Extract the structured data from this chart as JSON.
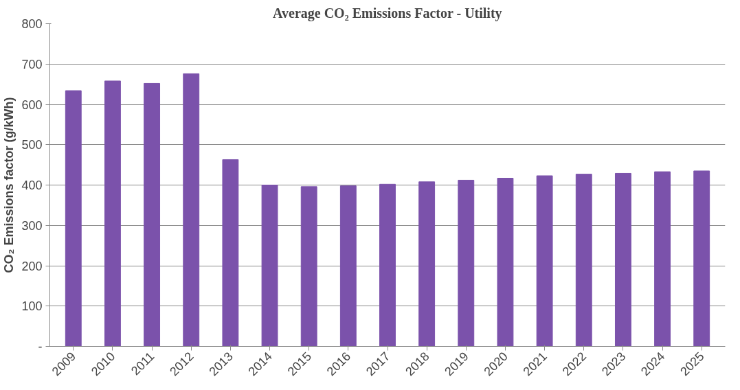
{
  "chart_data": {
    "type": "bar",
    "title": "Average CO₂ Emissions Factor - Utility",
    "ylabel": "CO₂ Emissions factor (g/kWh)",
    "categories": [
      "2009",
      "2010",
      "2011",
      "2012",
      "2013",
      "2014",
      "2015",
      "2016",
      "2017",
      "2018",
      "2019",
      "2020",
      "2021",
      "2022",
      "2023",
      "2024",
      "2025"
    ],
    "values": [
      634,
      658,
      652,
      676,
      463,
      400,
      396,
      398,
      402,
      408,
      412,
      417,
      423,
      427,
      429,
      433,
      435
    ],
    "color": "#7b52ab",
    "ylim": [
      0,
      800
    ],
    "yticks": [
      {
        "value": 0,
        "label": "-"
      },
      100,
      200,
      300,
      400,
      500,
      600,
      700,
      800
    ],
    "grid": "y"
  }
}
